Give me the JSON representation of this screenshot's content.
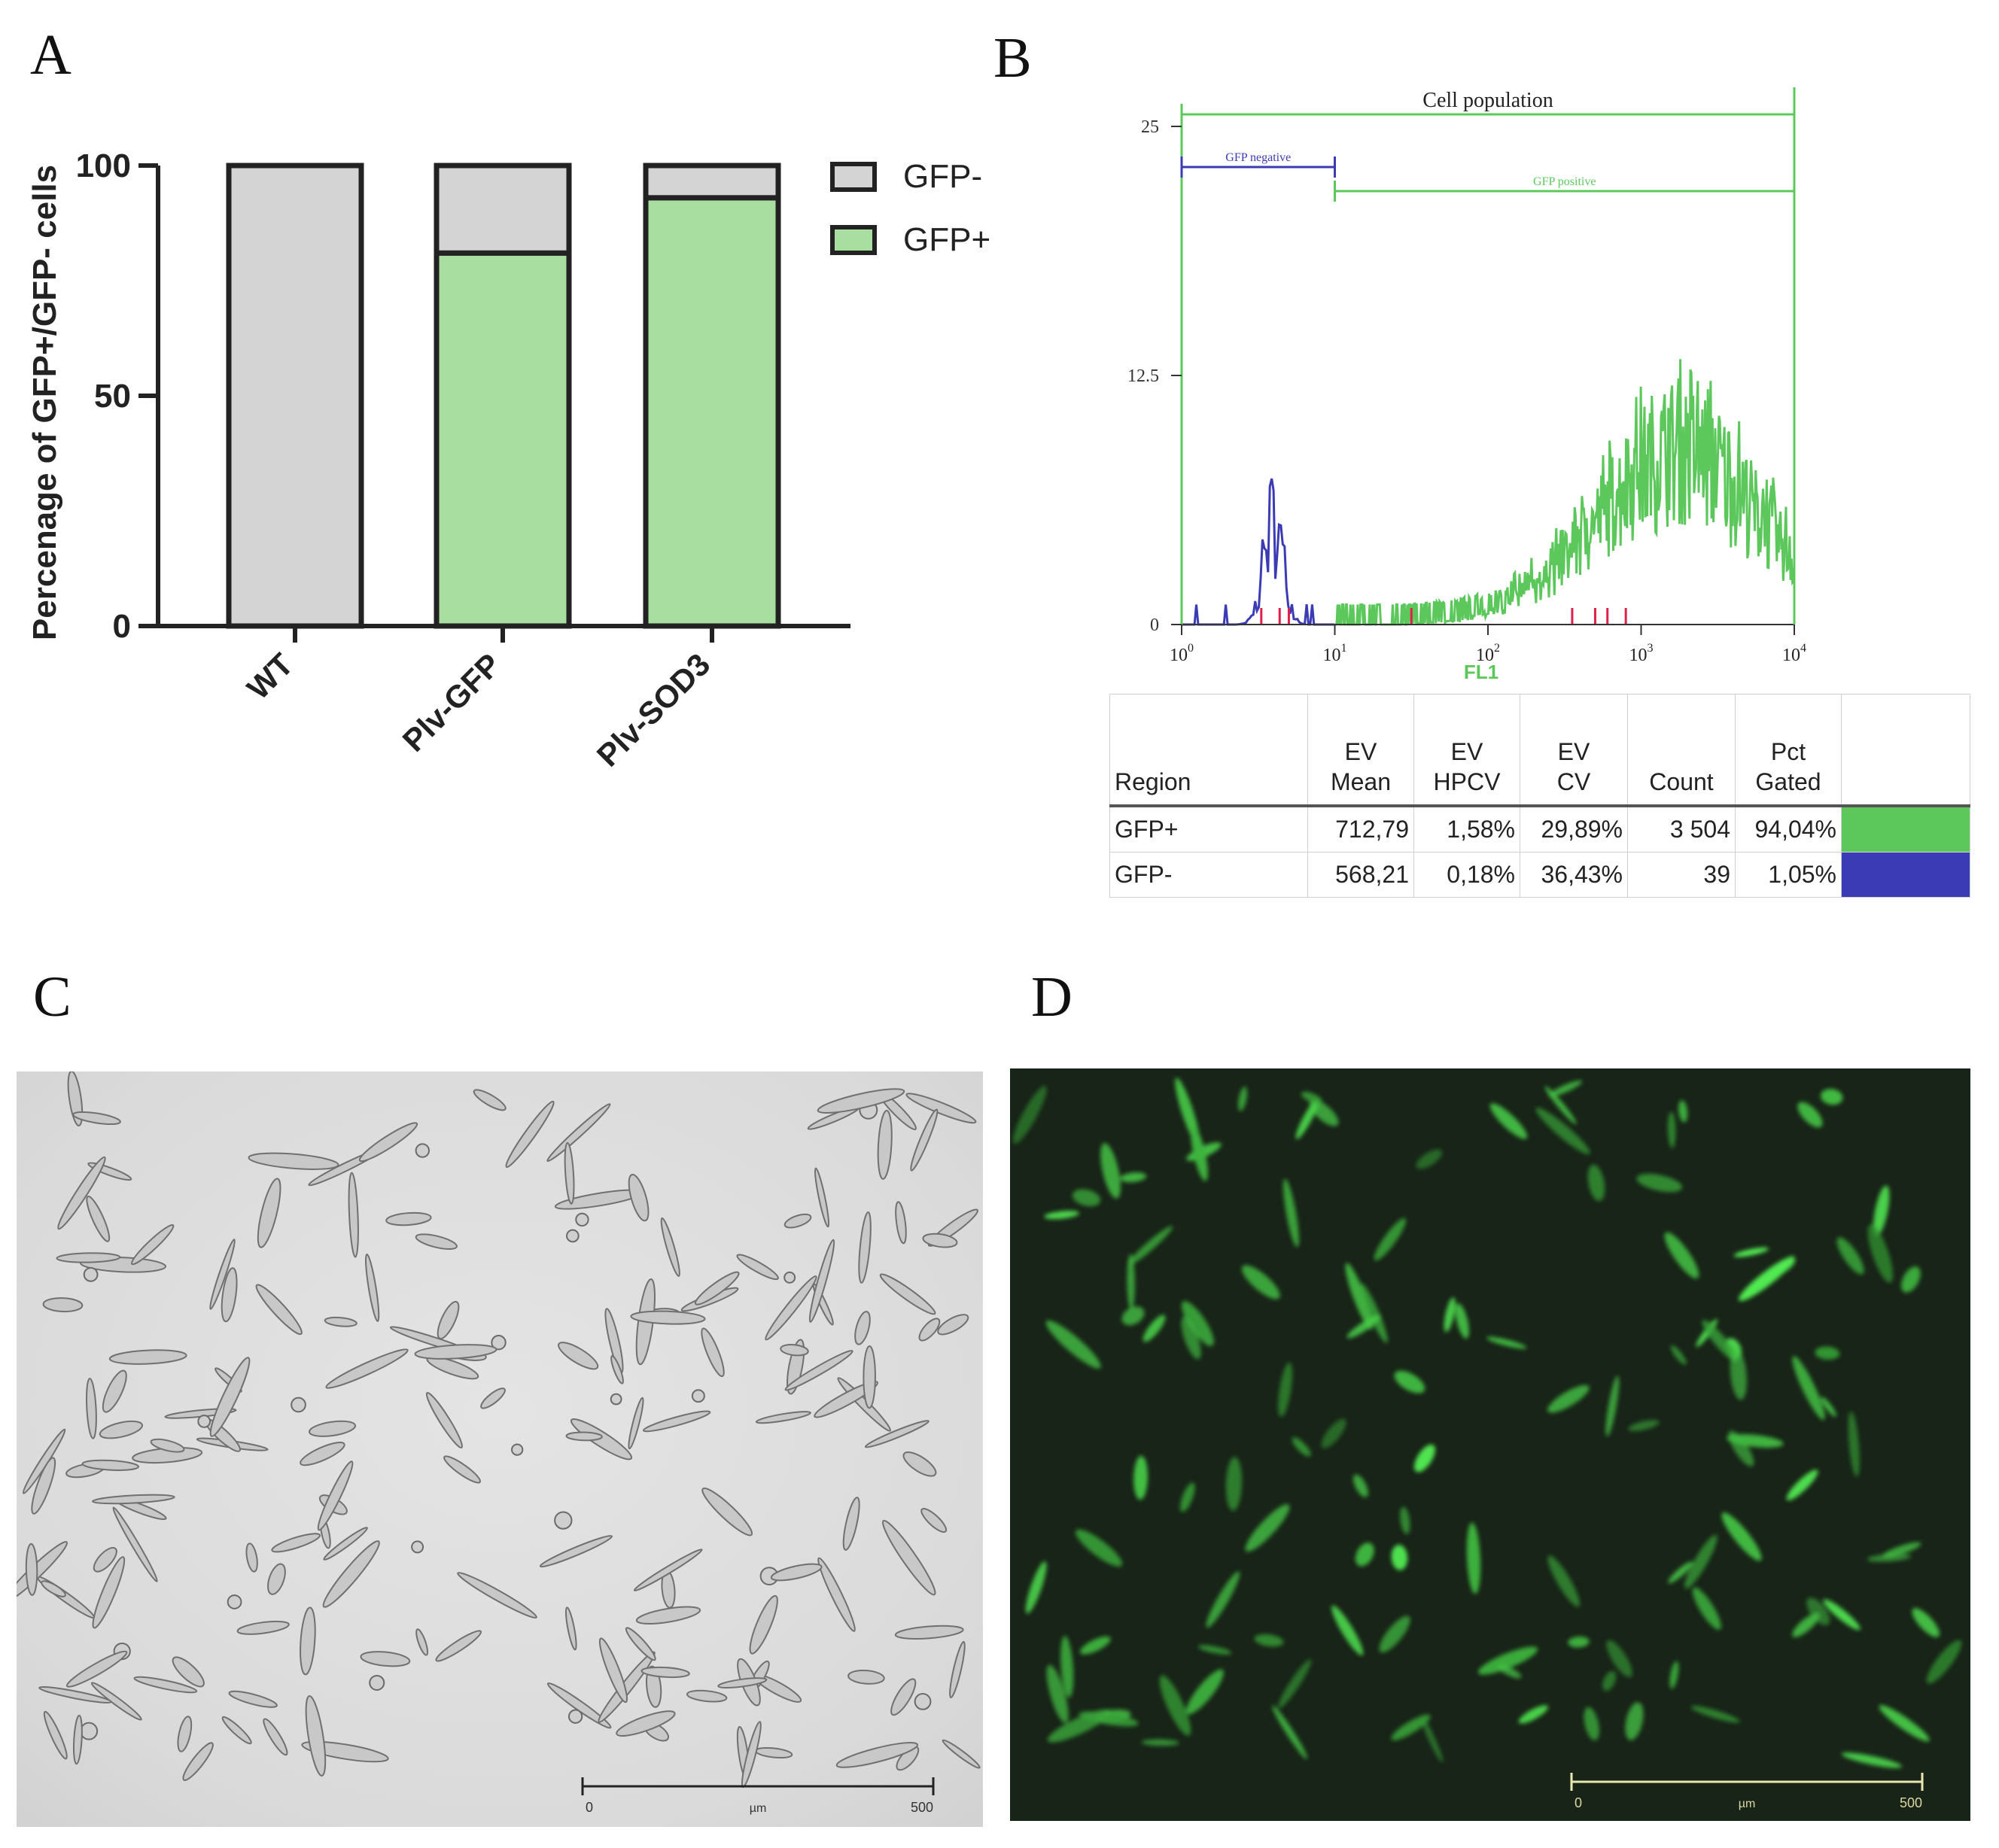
{
  "panels": {
    "a": "A",
    "b": "B",
    "c": "C",
    "d": "D"
  },
  "chart_data": [
    {
      "type": "bar",
      "stacked": true,
      "categories": [
        "WT",
        "Plv-GFP",
        "Plv-SOD3"
      ],
      "series": [
        {
          "name": "GFP+",
          "values": [
            0,
            81,
            93
          ],
          "color": "#a8dfa0"
        },
        {
          "name": "GFP-",
          "values": [
            100,
            19,
            7
          ],
          "color": "#d4d4d4"
        }
      ],
      "ylabel": "Percenage of GFP+/GFP- cells",
      "yticks": [
        0,
        50,
        100
      ],
      "ylim": [
        0,
        100
      ],
      "legend": "top-right"
    },
    {
      "type": "histogram",
      "xlabel": "FL1",
      "xscale": "log",
      "xlim": [
        1,
        10000
      ],
      "xticks": [
        {
          "base": "10",
          "exp": "0"
        },
        {
          "base": "10",
          "exp": "1"
        },
        {
          "base": "10",
          "exp": "2"
        },
        {
          "base": "10",
          "exp": "3"
        },
        {
          "base": "10",
          "exp": "4"
        }
      ],
      "ylim": [
        0,
        25
      ],
      "yticks": [
        "0",
        "12.5",
        "25"
      ],
      "gates": [
        {
          "label": "Cell population",
          "from": 1,
          "to": 10000,
          "color": "#5cc85c"
        },
        {
          "label": "GFP negative",
          "from": 1,
          "to": 10,
          "color": "#3b3bb5"
        },
        {
          "label": "GFP positive",
          "from": 10,
          "to": 10000,
          "color": "#5cc85c"
        }
      ],
      "colors": {
        "positive": "#5cc85c",
        "negative": "#3b3bb5",
        "marker": "#e0204a"
      }
    }
  ],
  "stats_table": {
    "headers": [
      "Region",
      "EV Mean",
      "EV HPCV",
      "EV CV",
      "Count",
      "Pct Gated"
    ],
    "header_lines": [
      [
        "",
        "Region"
      ],
      [
        "EV",
        "Mean"
      ],
      [
        "EV",
        "HPCV"
      ],
      [
        "EV",
        "CV"
      ],
      [
        "",
        "Count"
      ],
      [
        "Pct",
        "Gated"
      ]
    ],
    "rows": [
      {
        "region": "GFP+",
        "mean": "712,79",
        "hpcv": "1,58%",
        "cv": "29,89%",
        "count": "3 504",
        "pct": "94,04%",
        "color": "#5cc85c"
      },
      {
        "region": "GFP-",
        "mean": "568,21",
        "hpcv": "0,18%",
        "cv": "36,43%",
        "count": "39",
        "pct": "1,05%",
        "color": "#3b3bb5"
      }
    ]
  },
  "micrographs": {
    "c": {
      "scale_start": "0",
      "scale_unit": "µm",
      "scale_end": "500"
    },
    "d": {
      "scale_start": "0",
      "scale_unit": "µm",
      "scale_end": "500"
    }
  }
}
